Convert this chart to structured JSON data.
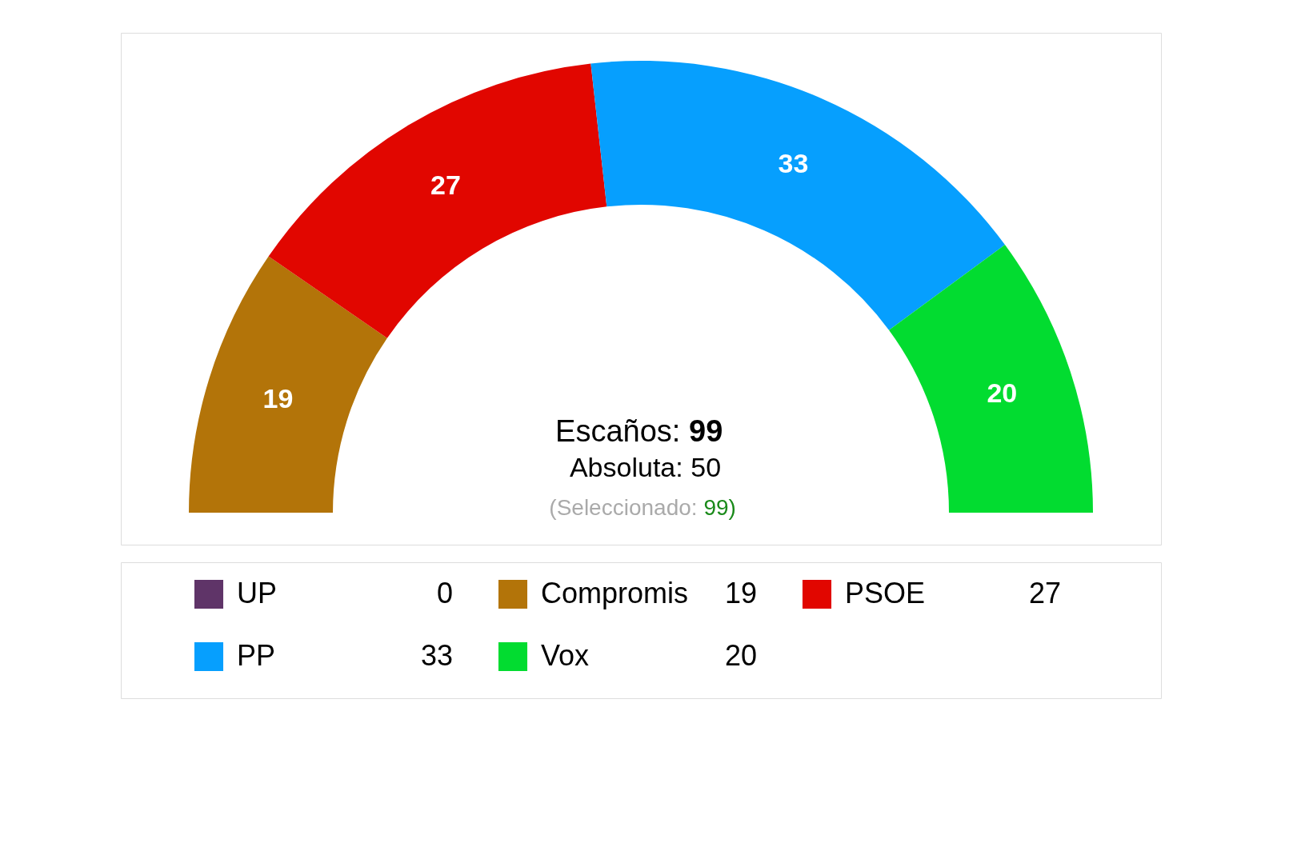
{
  "chart_data": {
    "type": "donut",
    "categories": [
      "UP",
      "Compromis",
      "PSOE",
      "PP",
      "Vox"
    ],
    "values": [
      0,
      19,
      27,
      33,
      20
    ],
    "colors": [
      "#5f3468",
      "#b37409",
      "#e10600",
      "#069ffe",
      "#02dc30"
    ],
    "data_labels": true,
    "legend": "bottom",
    "annotations": [
      "Escaños: 99",
      "Absoluta: 50",
      "(Seleccionado: 99)",
      "0",
      "19",
      "27",
      "33",
      "20"
    ]
  }
}
